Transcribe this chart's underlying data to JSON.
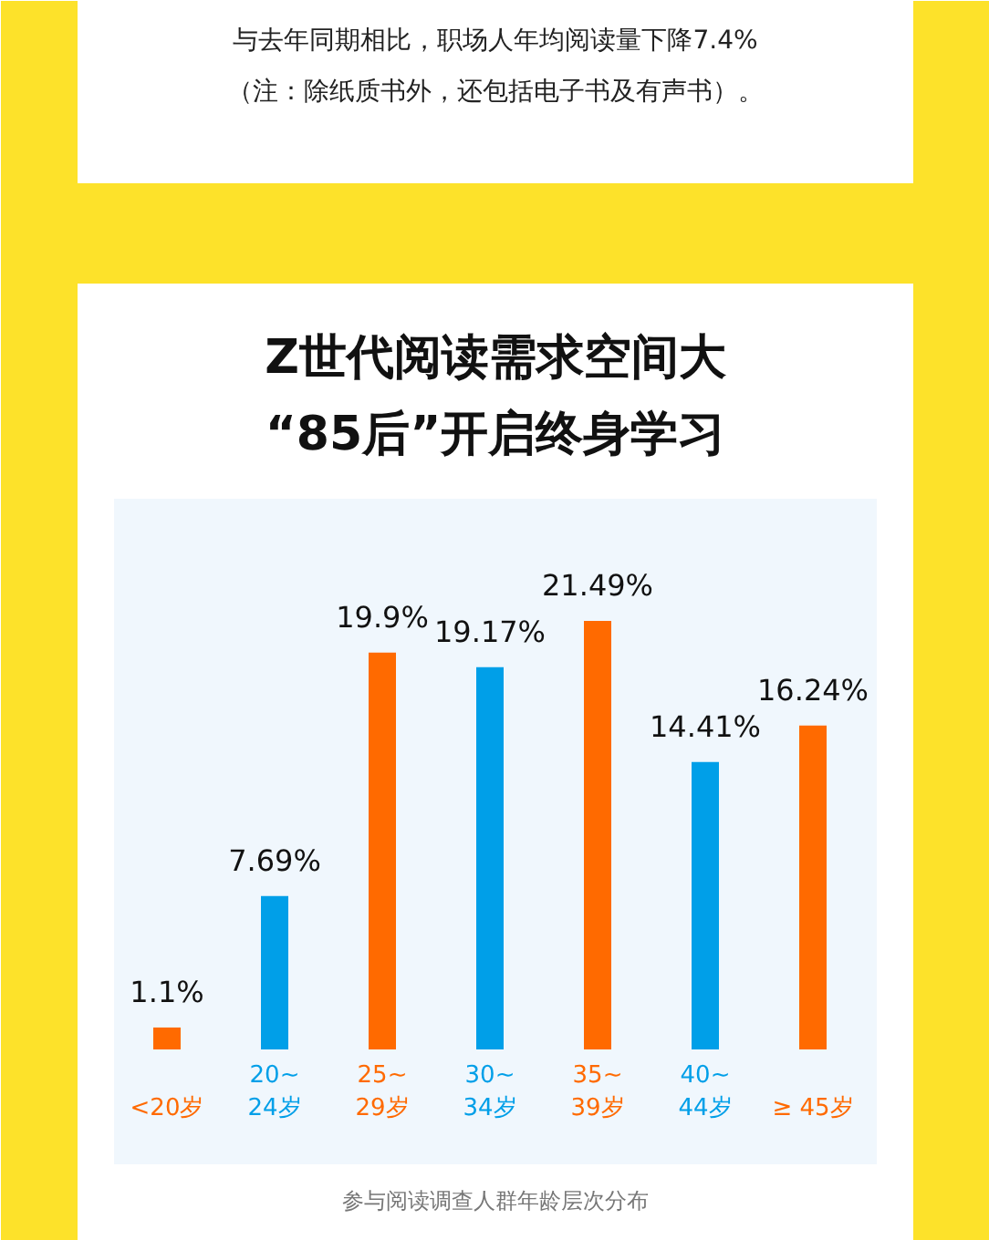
{
  "chart_data": {
    "type": "bar",
    "title": "Z世代阅读需求空间大",
    "subtitle": "“85后”开启终身学习",
    "categories": [
      "<20岁",
      "20~\n24岁",
      "25~\n29岁",
      "30~\n34岁",
      "35~\n39岁",
      "40~\n44岁",
      "≥ 45岁"
    ],
    "values": [
      1.1,
      7.69,
      19.9,
      19.17,
      21.49,
      14.41,
      16.24
    ],
    "colors": [
      "#ff6a00",
      "#009fe8",
      "#ff6a00",
      "#009fe8",
      "#ff6a00",
      "#009fe8",
      "#ff6a00"
    ],
    "value_labels": [
      "1.1%",
      "7.69%",
      "19.9%",
      "19.17%",
      "21.49%",
      "14.41%",
      "16.24%"
    ],
    "annotations": [
      "与去年同期相比，职场人年均阅读量下降7.4%",
      "（注：除纸质书外，还包括电子书及有声书）。",
      "参与阅读调查人群年龄层次分布"
    ]
  }
}
